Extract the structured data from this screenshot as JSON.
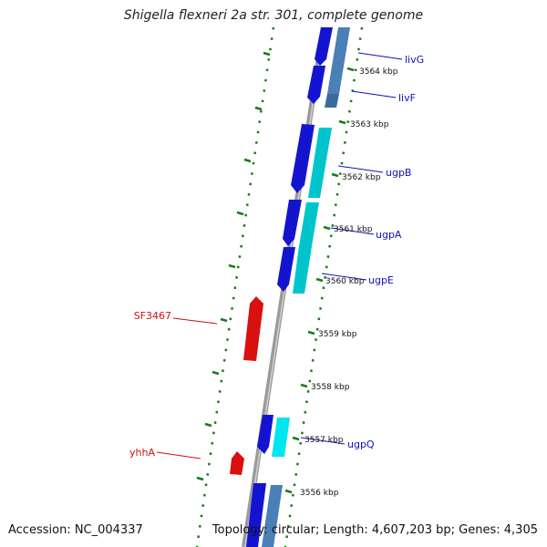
{
  "title": "Shigella flexneri 2a str. 301, complete genome",
  "accession_text": "Accession: NC_004337",
  "topology_text": "Topology: circular; Length: 4,607,203 bp; Genes: 4,305",
  "colors": {
    "backbone": "#8c8c8c",
    "tick": "#1a7a1a",
    "forward_gene": "#1414d0",
    "forward_gene_light": "#00c4cc",
    "forward_gene_steel": "#4a7fb8",
    "reverse_gene": "#d81010",
    "label_forward": "#1010c0",
    "label_reverse": "#d01010"
  },
  "tick_labels": [
    {
      "id": "3564",
      "label": "3564 kbp",
      "pos_kbp": 3564
    },
    {
      "id": "3563",
      "label": "3563 kbp",
      "pos_kbp": 3563
    },
    {
      "id": "3562",
      "label": "3562 kbp",
      "pos_kbp": 3562
    },
    {
      "id": "3561",
      "label": "3561 kbp",
      "pos_kbp": 3561
    },
    {
      "id": "3560",
      "label": "3560 kbp",
      "pos_kbp": 3560
    },
    {
      "id": "3559",
      "label": "3559 kbp",
      "pos_kbp": 3559
    },
    {
      "id": "3558",
      "label": "3558 kbp",
      "pos_kbp": 3558
    },
    {
      "id": "3557",
      "label": "3557 kbp",
      "pos_kbp": 3557
    },
    {
      "id": "3556",
      "label": "3556 kbp",
      "pos_kbp": 3556
    }
  ],
  "gene_labels": [
    {
      "id": "livG",
      "name": "livG",
      "strand": "forward"
    },
    {
      "id": "livF",
      "name": "livF",
      "strand": "forward"
    },
    {
      "id": "ugpB",
      "name": "ugpB",
      "strand": "forward"
    },
    {
      "id": "ugpA",
      "name": "ugpA",
      "strand": "forward"
    },
    {
      "id": "ugpE",
      "name": "ugpE",
      "strand": "forward"
    },
    {
      "id": "SF3467",
      "name": "SF3467",
      "strand": "reverse"
    },
    {
      "id": "yhhA",
      "name": "yhhA",
      "strand": "reverse"
    },
    {
      "id": "ugpQ",
      "name": "ugpQ",
      "strand": "forward"
    }
  ]
}
